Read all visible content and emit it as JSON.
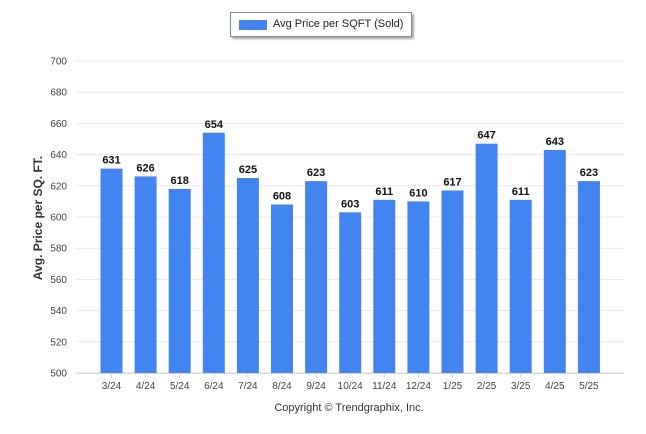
{
  "chart_data": {
    "type": "bar",
    "categories": [
      "3/24",
      "4/24",
      "5/24",
      "6/24",
      "7/24",
      "8/24",
      "9/24",
      "10/24",
      "11/24",
      "12/24",
      "1/25",
      "2/25",
      "3/25",
      "4/25",
      "5/25"
    ],
    "series": [
      {
        "name": "Avg Price per SQFT (Sold)",
        "values": [
          631,
          626,
          618,
          654,
          625,
          608,
          623,
          603,
          611,
          610,
          617,
          647,
          611,
          643,
          623
        ]
      }
    ],
    "ylabel": "Avg. Price per SQ. FT.",
    "xlabel": "",
    "ylim": [
      500,
      700
    ],
    "yticks": [
      500,
      520,
      540,
      560,
      580,
      600,
      620,
      640,
      660,
      680,
      700
    ],
    "grid": true,
    "legend_position": "top-center",
    "bar_color": "#4285f0",
    "grid_color": "#e8e8e8",
    "axis_color": "#d8d8d8"
  },
  "copyright": "Copyright © Trendgraphix, Inc."
}
